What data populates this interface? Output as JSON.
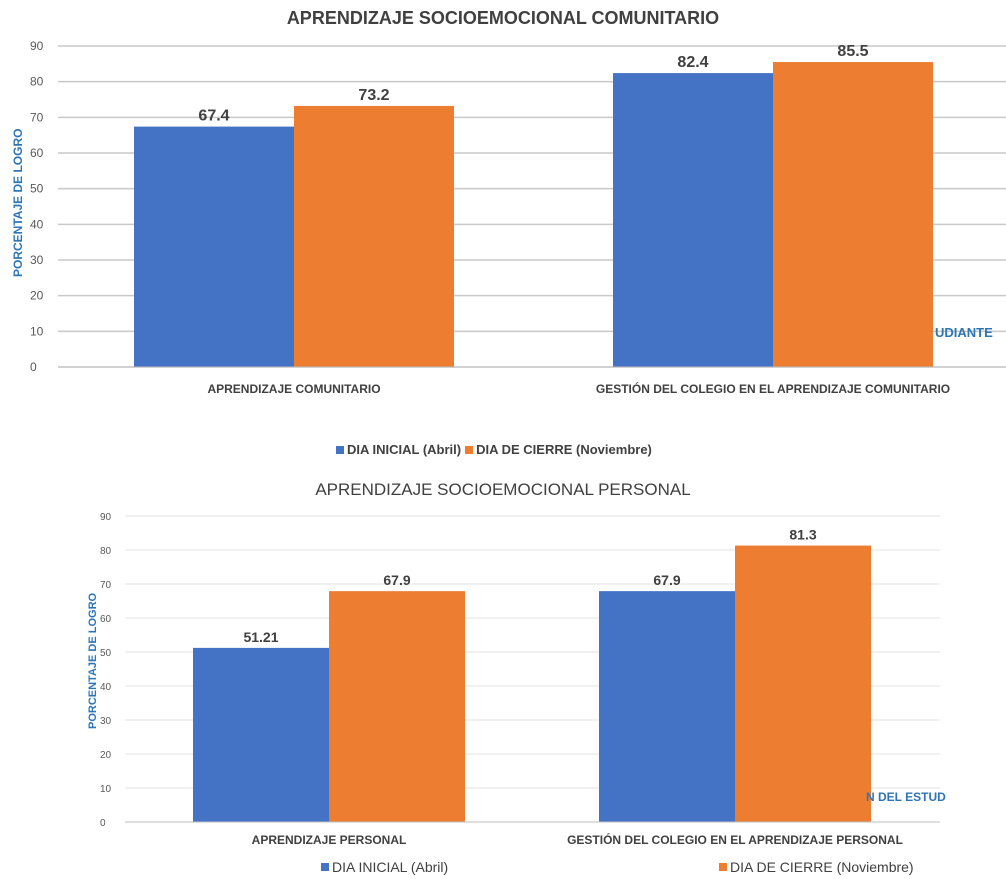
{
  "chart_data": [
    {
      "type": "bar",
      "title": "APRENDIZAJE SOCIOEMOCIONAL COMUNITARIO",
      "ylabel": "PORCENTAJE DE LOGRO",
      "xlabel": "",
      "ylim": [
        0,
        90
      ],
      "yticks": [
        0,
        10,
        20,
        30,
        40,
        50,
        60,
        70,
        80,
        90
      ],
      "categories": [
        "APRENDIZAJE COMUNITARIO",
        "GESTIÓN DEL COLEGIO EN EL APRENDIZAJE COMUNITARIO"
      ],
      "series": [
        {
          "name": "DIA INICIAL (Abril)",
          "values": [
            67.4,
            82.4
          ],
          "labels": [
            "67.4",
            "82.4"
          ],
          "color": "#4472C4"
        },
        {
          "name": "DIA DE CIERRE (Noviembre)",
          "values": [
            73.2,
            85.5
          ],
          "labels": [
            "73.2",
            "85.5"
          ],
          "color": "#ED7D31"
        }
      ],
      "grid": true,
      "legend": "bottom",
      "clipped_text": "UDIANTE"
    },
    {
      "type": "bar",
      "title": "APRENDIZAJE SOCIOEMOCIONAL PERSONAL",
      "ylabel": "PORCENTAJE DE LOGRO",
      "xlabel": "",
      "ylim": [
        0,
        90
      ],
      "yticks": [
        0,
        10,
        20,
        30,
        40,
        50,
        60,
        70,
        80,
        90
      ],
      "categories": [
        "APRENDIZAJE  PERSONAL",
        "GESTIÓN DEL COLEGIO EN EL APRENDIZAJE PERSONAL"
      ],
      "series": [
        {
          "name": "DIA INICIAL (Abril)",
          "values": [
            51.21,
            67.9
          ],
          "labels": [
            "51.21",
            "67.9"
          ],
          "color": "#4472C4"
        },
        {
          "name": "DIA DE CIERRE (Noviembre)",
          "values": [
            67.9,
            81.3
          ],
          "labels": [
            "67.9",
            "81.3"
          ],
          "color": "#ED7D31"
        }
      ],
      "grid": true,
      "legend": "bottom",
      "clipped_text": "N DEL ESTUD"
    }
  ]
}
